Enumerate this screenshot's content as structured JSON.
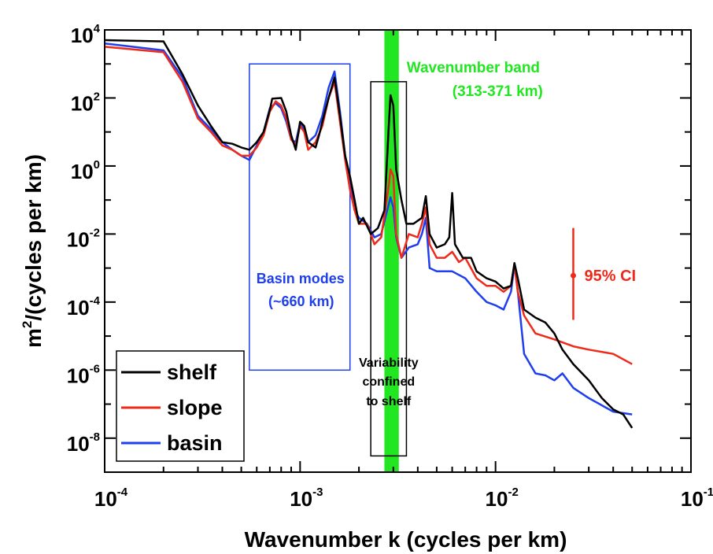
{
  "chart_data": {
    "type": "line",
    "x_scale": "log",
    "y_scale": "log",
    "xlabel": "Wavenumber k (cycles per km)",
    "ylabel_base": "m",
    "ylabel_sup": "2",
    "ylabel_rest": "/(cycles per km)",
    "xlim": [
      0.0001,
      0.1
    ],
    "ylim": [
      1e-09,
      10000
    ],
    "x_ticks": [
      {
        "value": 0.0001,
        "base": "10",
        "exp": "-4"
      },
      {
        "value": 0.001,
        "base": "10",
        "exp": "-3"
      },
      {
        "value": 0.01,
        "base": "10",
        "exp": "-2"
      },
      {
        "value": 0.1,
        "base": "10",
        "exp": "-1"
      }
    ],
    "y_ticks": [
      {
        "value": 1e-08,
        "base": "10",
        "exp": "-8"
      },
      {
        "value": 1e-06,
        "base": "10",
        "exp": "-6"
      },
      {
        "value": 0.0001,
        "base": "10",
        "exp": "-4"
      },
      {
        "value": 0.01,
        "base": "10",
        "exp": "-2"
      },
      {
        "value": 1,
        "base": "10",
        "exp": "0"
      },
      {
        "value": 100,
        "base": "10",
        "exp": "2"
      },
      {
        "value": 10000,
        "base": "10",
        "exp": "4"
      }
    ],
    "series": [
      {
        "name": "shelf",
        "color": "#000000",
        "points": [
          [
            0.0001,
            5000
          ],
          [
            0.0002,
            4600
          ],
          [
            0.00025,
            500
          ],
          [
            0.0003,
            60
          ],
          [
            0.00035,
            15
          ],
          [
            0.0004,
            5
          ],
          [
            0.00045,
            4.5
          ],
          [
            0.0005,
            3.5
          ],
          [
            0.00055,
            3
          ],
          [
            0.0006,
            5
          ],
          [
            0.00065,
            10
          ],
          [
            0.0007,
            45
          ],
          [
            0.00072,
            95
          ],
          [
            0.0008,
            100
          ],
          [
            0.00085,
            40
          ],
          [
            0.0009,
            8
          ],
          [
            0.00095,
            3
          ],
          [
            0.001,
            20
          ],
          [
            0.00105,
            15
          ],
          [
            0.0011,
            5
          ],
          [
            0.0012,
            3.5
          ],
          [
            0.00125,
            8
          ],
          [
            0.0013,
            20
          ],
          [
            0.0014,
            100
          ],
          [
            0.0015,
            400
          ],
          [
            0.0016,
            30
          ],
          [
            0.0017,
            2
          ],
          [
            0.0018,
            0.5
          ],
          [
            0.0019,
            0.1
          ],
          [
            0.002,
            0.02
          ],
          [
            0.0021,
            0.03
          ],
          [
            0.0023,
            0.01
          ],
          [
            0.0025,
            0.015
          ],
          [
            0.0027,
            0.05
          ],
          [
            0.00285,
            20
          ],
          [
            0.0029,
            120
          ],
          [
            0.003,
            60
          ],
          [
            0.0031,
            0.8
          ],
          [
            0.0033,
            0.1
          ],
          [
            0.0035,
            0.02
          ],
          [
            0.0038,
            0.02
          ],
          [
            0.0042,
            0.03
          ],
          [
            0.0044,
            0.13
          ],
          [
            0.0046,
            0.01
          ],
          [
            0.005,
            0.004
          ],
          [
            0.0055,
            0.005
          ],
          [
            0.0058,
            0.008
          ],
          [
            0.006,
            0.16
          ],
          [
            0.0062,
            0.005
          ],
          [
            0.0068,
            0.002
          ],
          [
            0.0075,
            0.002
          ],
          [
            0.008,
            0.0008
          ],
          [
            0.009,
            0.0005
          ],
          [
            0.01,
            0.0004
          ],
          [
            0.011,
            0.00025
          ],
          [
            0.012,
            0.0003
          ],
          [
            0.0125,
            0.0014
          ],
          [
            0.013,
            0.0005
          ],
          [
            0.014,
            6e-05
          ],
          [
            0.016,
            3.5e-05
          ],
          [
            0.018,
            2.5e-05
          ],
          [
            0.02,
            1.2e-05
          ],
          [
            0.022,
            4e-06
          ],
          [
            0.025,
            1.5e-06
          ],
          [
            0.03,
            5e-07
          ],
          [
            0.035,
            1.5e-07
          ],
          [
            0.04,
            7e-08
          ],
          [
            0.045,
            5e-08
          ],
          [
            0.05,
            2e-08
          ]
        ]
      },
      {
        "name": "slope",
        "color": "#ee2a1a",
        "points": [
          [
            0.0001,
            3200
          ],
          [
            0.0002,
            2200
          ],
          [
            0.00025,
            300
          ],
          [
            0.0003,
            25
          ],
          [
            0.00035,
            10
          ],
          [
            0.0004,
            4
          ],
          [
            0.00045,
            3
          ],
          [
            0.0005,
            2
          ],
          [
            0.00055,
            2
          ],
          [
            0.0006,
            3.5
          ],
          [
            0.00065,
            8
          ],
          [
            0.0007,
            40
          ],
          [
            0.00075,
            80
          ],
          [
            0.0008,
            60
          ],
          [
            0.00085,
            25
          ],
          [
            0.0009,
            6
          ],
          [
            0.00095,
            4
          ],
          [
            0.001,
            15
          ],
          [
            0.00105,
            10
          ],
          [
            0.0011,
            3
          ],
          [
            0.0012,
            5
          ],
          [
            0.0013,
            15
          ],
          [
            0.0014,
            100
          ],
          [
            0.0015,
            300
          ],
          [
            0.0016,
            20
          ],
          [
            0.0017,
            1.5
          ],
          [
            0.0018,
            0.2
          ],
          [
            0.0019,
            0.05
          ],
          [
            0.002,
            0.02
          ],
          [
            0.0022,
            0.02
          ],
          [
            0.0024,
            0.005
          ],
          [
            0.0026,
            0.008
          ],
          [
            0.00285,
            0.3
          ],
          [
            0.0029,
            0.8
          ],
          [
            0.003,
            0.5
          ],
          [
            0.0031,
            0.01
          ],
          [
            0.0033,
            0.002
          ],
          [
            0.0036,
            0.01
          ],
          [
            0.004,
            0.008
          ],
          [
            0.0042,
            0.02
          ],
          [
            0.0044,
            0.06
          ],
          [
            0.0046,
            0.005
          ],
          [
            0.005,
            0.002
          ],
          [
            0.0055,
            0.002
          ],
          [
            0.006,
            0.003
          ],
          [
            0.0065,
            0.0015
          ],
          [
            0.007,
            0.002
          ],
          [
            0.008,
            0.0005
          ],
          [
            0.009,
            0.0003
          ],
          [
            0.01,
            0.0003
          ],
          [
            0.011,
            0.0002
          ],
          [
            0.012,
            0.0003
          ],
          [
            0.0125,
            0.0013
          ],
          [
            0.013,
            0.0002
          ],
          [
            0.014,
            4e-05
          ],
          [
            0.016,
            1.2e-05
          ],
          [
            0.02,
            8e-06
          ],
          [
            0.025,
            5e-06
          ],
          [
            0.03,
            4e-06
          ],
          [
            0.04,
            3e-06
          ],
          [
            0.05,
            1.5e-06
          ]
        ]
      },
      {
        "name": "basin",
        "color": "#1f3fee",
        "points": [
          [
            0.0001,
            4000
          ],
          [
            0.0002,
            2500
          ],
          [
            0.00025,
            400
          ],
          [
            0.0003,
            30
          ],
          [
            0.00035,
            12
          ],
          [
            0.0004,
            5
          ],
          [
            0.00045,
            3
          ],
          [
            0.0005,
            2
          ],
          [
            0.00055,
            1.5
          ],
          [
            0.0006,
            4
          ],
          [
            0.00065,
            10
          ],
          [
            0.0007,
            50
          ],
          [
            0.00075,
            70
          ],
          [
            0.0008,
            50
          ],
          [
            0.00085,
            20
          ],
          [
            0.0009,
            6
          ],
          [
            0.00095,
            5
          ],
          [
            0.001,
            18
          ],
          [
            0.00105,
            12
          ],
          [
            0.0011,
            5
          ],
          [
            0.0012,
            8
          ],
          [
            0.0013,
            30
          ],
          [
            0.0014,
            200
          ],
          [
            0.0015,
            600
          ],
          [
            0.0016,
            40
          ],
          [
            0.0017,
            2
          ],
          [
            0.0018,
            0.3
          ],
          [
            0.0019,
            0.05
          ],
          [
            0.002,
            0.03
          ],
          [
            0.0022,
            0.02
          ],
          [
            0.0024,
            0.008
          ],
          [
            0.0026,
            0.01
          ],
          [
            0.00285,
            0.08
          ],
          [
            0.0029,
            0.12
          ],
          [
            0.003,
            0.06
          ],
          [
            0.0031,
            0.008
          ],
          [
            0.0033,
            0.002
          ],
          [
            0.0036,
            0.004
          ],
          [
            0.004,
            0.005
          ],
          [
            0.0042,
            0.01
          ],
          [
            0.0044,
            0.03
          ],
          [
            0.0046,
            0.001
          ],
          [
            0.005,
            0.0008
          ],
          [
            0.006,
            0.0008
          ],
          [
            0.007,
            0.0005
          ],
          [
            0.008,
            0.0002
          ],
          [
            0.009,
            0.0001
          ],
          [
            0.01,
            8e-05
          ],
          [
            0.011,
            6e-05
          ],
          [
            0.012,
            0.0002
          ],
          [
            0.0125,
            0.0012
          ],
          [
            0.013,
            0.0002
          ],
          [
            0.014,
            3e-06
          ],
          [
            0.016,
            8e-07
          ],
          [
            0.018,
            7e-07
          ],
          [
            0.02,
            5e-07
          ],
          [
            0.022,
            8e-07
          ],
          [
            0.025,
            3e-07
          ],
          [
            0.03,
            1.5e-07
          ],
          [
            0.04,
            6e-08
          ],
          [
            0.05,
            5e-08
          ]
        ]
      }
    ],
    "annotations": {
      "band_label_1": "Wavenumber band",
      "band_label_2": "(313-371 km)",
      "basin_label_1": "Basin modes",
      "basin_label_2": "(~660 km)",
      "shelf_label_1": "Variability",
      "shelf_label_2": "confined",
      "shelf_label_3": "to shelf",
      "ci_label": "95% CI"
    },
    "band": {
      "x_range": [
        0.0027,
        0.0032
      ],
      "color": "#22e622"
    },
    "basin_box": {
      "x_range": [
        0.00055,
        0.0018
      ],
      "y_range": [
        1e-06,
        1000
      ],
      "color": "#1f3fee"
    },
    "shelf_box": {
      "x_range": [
        0.0023,
        0.0035
      ],
      "y_range": [
        3e-09,
        300
      ],
      "color": "#000000"
    },
    "ci": {
      "x": 0.025,
      "y_low": 3e-05,
      "y_high": 0.015,
      "y_center": 0.0006,
      "color": "#ee2a1a"
    },
    "legend": {
      "placement": "bottom-left",
      "entries": [
        "shelf",
        "slope",
        "basin"
      ]
    }
  }
}
